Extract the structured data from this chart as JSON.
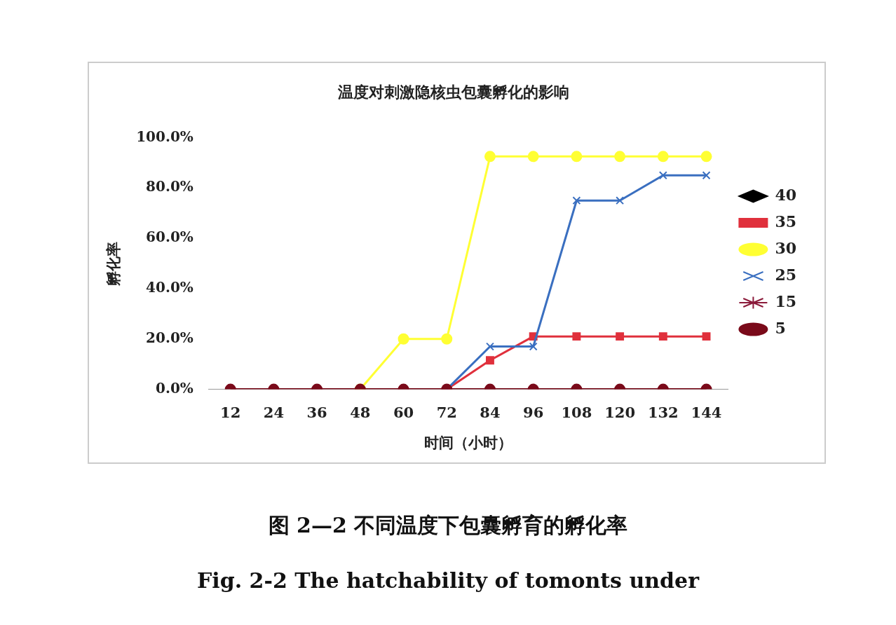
{
  "chart_data": {
    "type": "line",
    "title": "温度对刺激隐核虫包囊孵化的影响",
    "xlabel": "时间（小时）",
    "ylabel": "孵化率",
    "categories": [
      "12",
      "24",
      "36",
      "48",
      "60",
      "72",
      "84",
      "96",
      "108",
      "120",
      "132",
      "144"
    ],
    "ylim": [
      0,
      100
    ],
    "yticks": [
      {
        "value": 0,
        "label": "0.0%"
      },
      {
        "value": 20,
        "label": "20.0%"
      },
      {
        "value": 40,
        "label": "40.0%"
      },
      {
        "value": 60,
        "label": "60.0%"
      },
      {
        "value": 80,
        "label": "80.0%"
      },
      {
        "value": 100,
        "label": "100.0%"
      }
    ],
    "grid": false,
    "legend": "right",
    "series": [
      {
        "name": "40",
        "color": "#000000",
        "marker": "diamond",
        "values": [
          null,
          null,
          null,
          null,
          null,
          null,
          null,
          null,
          null,
          null,
          null,
          null
        ]
      },
      {
        "name": "35",
        "color": "#e0303c",
        "marker": "square",
        "values": [
          null,
          null,
          null,
          null,
          null,
          0,
          11.5,
          21,
          21,
          21,
          21,
          21
        ]
      },
      {
        "name": "30",
        "color": "#ffff33",
        "marker": "circle",
        "values": [
          null,
          null,
          null,
          0,
          20,
          20,
          92.5,
          92.5,
          92.5,
          92.5,
          92.5,
          92.5
        ]
      },
      {
        "name": "25",
        "color": "#3a6fc0",
        "marker": "cross",
        "values": [
          null,
          null,
          null,
          null,
          null,
          0,
          17,
          17,
          75,
          75,
          85,
          85
        ]
      },
      {
        "name": "15",
        "color": "#8b1a3a",
        "marker": "star",
        "values": [
          null,
          null,
          null,
          null,
          null,
          null,
          null,
          null,
          null,
          null,
          null,
          null
        ]
      },
      {
        "name": "5",
        "color": "#7a0a1a",
        "marker": "circle",
        "values": [
          0,
          0,
          0,
          0,
          0,
          0,
          0,
          0,
          0,
          0,
          0,
          0
        ]
      }
    ],
    "annotations": [
      "图 2—2 不同温度下包囊孵育的孵化率",
      "Fig. 2-2 The hatchability of tomonts under"
    ]
  }
}
